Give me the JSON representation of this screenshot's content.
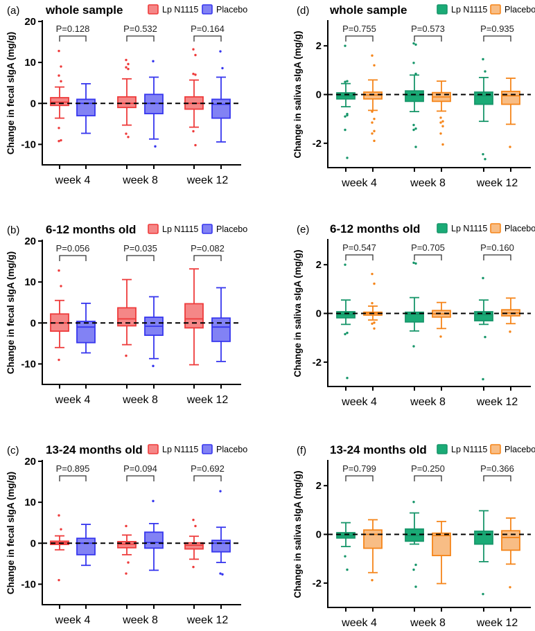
{
  "chart_data": [
    {
      "type": "box",
      "panel_label": "(a)",
      "title": "whole sample",
      "ylabel": "Change in fecal sIgA (mg/g)",
      "ylim": [
        -15,
        20
      ],
      "yticks": [
        -10,
        0,
        10,
        20
      ],
      "categories": [
        "week 4",
        "week 8",
        "week 12"
      ],
      "p_values": [
        "P=0.128",
        "P=0.532",
        "P=0.164"
      ],
      "series": [
        {
          "name": "Lp N1115",
          "color": "#ee3b3b",
          "fill": "#f58787",
          "boxes": [
            {
              "min": -3.6,
              "q1": -0.5,
              "median": 0.3,
              "q3": 1.4,
              "max": 4,
              "outliers": [
                12.8,
                9,
                6.8,
                5.4,
                -6,
                -9,
                -9.2
              ]
            },
            {
              "min": -5.3,
              "q1": -1,
              "median": 0,
              "q3": 1.6,
              "max": 6,
              "outliers": [
                10.6,
                9.6,
                8.8,
                8.4,
                -7.4,
                -8.2
              ]
            },
            {
              "min": -5.8,
              "q1": -1.4,
              "median": 0,
              "q3": 1.6,
              "max": 5.7,
              "outliers": [
                13.2,
                11.8,
                7.2,
                7,
                -6.8,
                -10.2
              ]
            }
          ]
        },
        {
          "name": "Placebo",
          "color": "#3636ee",
          "fill": "#8282f4",
          "boxes": [
            {
              "min": -7.3,
              "q1": -3,
              "median": 0,
              "q3": 1,
              "max": 4.8,
              "outliers": []
            },
            {
              "min": -8.7,
              "q1": -2.5,
              "median": 0,
              "q3": 2.2,
              "max": 6.4,
              "outliers": [
                10.3,
                -10.5
              ]
            },
            {
              "min": -9.4,
              "q1": -3.6,
              "median": -0.2,
              "q3": 1,
              "max": 6.4,
              "outliers": [
                12.7,
                8.6
              ]
            }
          ]
        }
      ]
    },
    {
      "type": "box",
      "panel_label": "(b)",
      "title": "6-12 months old",
      "ylabel": "Change in fecal sIgA (mg/g)",
      "ylim": [
        -15,
        20
      ],
      "yticks": [
        -10,
        0,
        10,
        20
      ],
      "categories": [
        "week 4",
        "week 8",
        "week 12"
      ],
      "p_values": [
        "P=0.056",
        "P=0.035",
        "P=0.082"
      ],
      "series": [
        {
          "name": "Lp N1115",
          "color": "#ee3b3b",
          "fill": "#f58787",
          "boxes": [
            {
              "min": -6,
              "q1": -2,
              "median": 0,
              "q3": 2.2,
              "max": 5.5,
              "outliers": [
                12.8,
                9,
                -9
              ]
            },
            {
              "min": -5.3,
              "q1": -0.7,
              "median": 1,
              "q3": 3.7,
              "max": 10.6,
              "outliers": [
                -8
              ]
            },
            {
              "min": -10.2,
              "q1": -1.2,
              "median": 1,
              "q3": 4.7,
              "max": 13.2,
              "outliers": []
            }
          ]
        },
        {
          "name": "Placebo",
          "color": "#3636ee",
          "fill": "#8282f4",
          "boxes": [
            {
              "min": -7.3,
              "q1": -4.8,
              "median": -1,
              "q3": 0.4,
              "max": 4.8,
              "outliers": []
            },
            {
              "min": -8.7,
              "q1": -3,
              "median": -0.8,
              "q3": 1.4,
              "max": 6.4,
              "outliers": [
                -10.5
              ]
            },
            {
              "min": -9.4,
              "q1": -4.5,
              "median": -1,
              "q3": 1.2,
              "max": 8.6,
              "outliers": []
            }
          ]
        }
      ]
    },
    {
      "type": "box",
      "panel_label": "(c)",
      "title": "13-24 months old",
      "ylabel": "Change in fecal sIgA (mg/g)",
      "ylim": [
        -15,
        20
      ],
      "yticks": [
        -10,
        0,
        10,
        20
      ],
      "categories": [
        "week 4",
        "week 8",
        "week 12"
      ],
      "p_values": [
        "P=0.895",
        "P=0.094",
        "P=0.692"
      ],
      "series": [
        {
          "name": "Lp N1115",
          "color": "#ee3b3b",
          "fill": "#f58787",
          "boxes": [
            {
              "min": -1.6,
              "q1": -0.3,
              "median": 0.1,
              "q3": 0.5,
              "max": 1.8,
              "outliers": [
                6.8,
                3.4,
                -9
              ]
            },
            {
              "min": -2.8,
              "q1": -1.1,
              "median": -0.2,
              "q3": 0.4,
              "max": 2,
              "outliers": [
                4.2,
                -4.7,
                -7.4
              ]
            },
            {
              "min": -3.9,
              "q1": -1.4,
              "median": -0.5,
              "q3": 0.1,
              "max": 1.7,
              "outliers": [
                5.7,
                4.2,
                -5.8
              ]
            }
          ]
        },
        {
          "name": "Placebo",
          "color": "#3636ee",
          "fill": "#8282f4",
          "boxes": [
            {
              "min": -5.4,
              "q1": -2.8,
              "median": 0,
              "q3": 1.2,
              "max": 4.6,
              "outliers": []
            },
            {
              "min": -6.6,
              "q1": -1.2,
              "median": 0.2,
              "q3": 2.7,
              "max": 4.8,
              "outliers": [
                10.3
              ]
            },
            {
              "min": -4.7,
              "q1": -2.1,
              "median": 0,
              "q3": 0.7,
              "max": 3.9,
              "outliers": [
                12.7,
                -7.6,
                -7.4
              ]
            }
          ]
        }
      ]
    },
    {
      "type": "box",
      "panel_label": "(d)",
      "title": "whole sample",
      "ylabel": "Change in saliva sIgA (mg/g)",
      "ylim": [
        -3,
        3
      ],
      "yticks": [
        -2,
        0,
        2
      ],
      "categories": [
        "week 4",
        "week 8",
        "week 12"
      ],
      "p_values": [
        "P=0.755",
        "P=0.573",
        "P=0.935"
      ],
      "series": [
        {
          "name": "Lp N1115",
          "color": "#17966a",
          "fill": "#1aab76",
          "boxes": [
            {
              "min": -0.5,
              "q1": -0.18,
              "median": -0.05,
              "q3": 0.07,
              "max": 0.45,
              "outliers": [
                2,
                0.55,
                0.52,
                -0.8,
                -0.9,
                -0.85,
                -1.45,
                -2.6
              ]
            },
            {
              "min": -0.7,
              "q1": -0.28,
              "median": -0.03,
              "q3": 0.15,
              "max": 0.8,
              "outliers": [
                2.1,
                2.05,
                1.3,
                0.85,
                -1.25,
                -1.4,
                -1.45,
                -2.15
              ]
            },
            {
              "min": -1.1,
              "q1": -0.4,
              "median": -0.05,
              "q3": 0.1,
              "max": 0.7,
              "outliers": [
                1.45,
                0.95,
                -2.45,
                -2.65
              ]
            }
          ]
        },
        {
          "name": "Placebo",
          "color": "#f5851a",
          "fill": "#f8bd85",
          "boxes": [
            {
              "min": -0.65,
              "q1": -0.18,
              "median": -0.02,
              "q3": 0.1,
              "max": 0.6,
              "outliers": [
                1.6,
                1.2,
                -0.7,
                -1,
                -1.15,
                -1.5,
                -1.6,
                -1.9
              ]
            },
            {
              "min": -0.68,
              "q1": -0.28,
              "median": -0.1,
              "q3": 0.08,
              "max": 0.55,
              "outliers": [
                -0.95,
                -1.1,
                -1.15,
                -1.3,
                -1.6,
                -2.05
              ]
            },
            {
              "min": -1.22,
              "q1": -0.4,
              "median": -0.05,
              "q3": 0.13,
              "max": 0.67,
              "outliers": [
                -2.15
              ]
            }
          ]
        }
      ]
    },
    {
      "type": "box",
      "panel_label": "(e)",
      "title": "6-12 months old",
      "ylabel": "Change in saliva sIgA (mg/g)",
      "ylim": [
        -3,
        3
      ],
      "yticks": [
        -2,
        0,
        2
      ],
      "categories": [
        "week 4",
        "week 8",
        "week 12"
      ],
      "p_values": [
        "P=0.547",
        "P=0.705",
        "P=0.160"
      ],
      "series": [
        {
          "name": "Lp N1115",
          "color": "#17966a",
          "fill": "#1aab76",
          "boxes": [
            {
              "min": -0.45,
              "q1": -0.18,
              "median": -0.05,
              "q3": 0.07,
              "max": 0.55,
              "outliers": [
                2,
                -0.8,
                -0.85,
                -2.65
              ]
            },
            {
              "min": -0.72,
              "q1": -0.35,
              "median": -0.03,
              "q3": 0.05,
              "max": 0.65,
              "outliers": [
                2.08,
                2.05,
                -1.35
              ]
            },
            {
              "min": -0.45,
              "q1": -0.3,
              "median": -0.05,
              "q3": 0.07,
              "max": 0.55,
              "outliers": [
                1.45,
                -0.97,
                -2.7
              ]
            }
          ]
        },
        {
          "name": "Placebo",
          "color": "#f5851a",
          "fill": "#f8bd85",
          "boxes": [
            {
              "min": -0.27,
              "q1": -0.07,
              "median": 0,
              "q3": 0.05,
              "max": 0.3,
              "outliers": [
                1.62,
                1.22,
                0.42,
                -0.38,
                -0.42,
                -0.62
              ]
            },
            {
              "min": -0.62,
              "q1": -0.15,
              "median": -0.02,
              "q3": 0.12,
              "max": 0.45,
              "outliers": [
                -0.95
              ]
            },
            {
              "min": -0.42,
              "q1": -0.1,
              "median": 0.02,
              "q3": 0.15,
              "max": 0.63,
              "outliers": [
                -0.75
              ]
            }
          ]
        }
      ]
    },
    {
      "type": "box",
      "panel_label": "(f)",
      "title": "13-24 months old",
      "ylabel": "Change in saliva sIgA (mg/g)",
      "ylim": [
        -3,
        3
      ],
      "yticks": [
        -2,
        0,
        2
      ],
      "categories": [
        "week 4",
        "week 8",
        "week 12"
      ],
      "p_values": [
        "P=0.799",
        "P=0.250",
        "P=0.366"
      ],
      "series": [
        {
          "name": "Lp N1115",
          "color": "#17966a",
          "fill": "#1aab76",
          "boxes": [
            {
              "min": -0.5,
              "q1": -0.15,
              "median": -0.05,
              "q3": 0.07,
              "max": 0.48,
              "outliers": [
                -0.9,
                -1.45
              ]
            },
            {
              "min": -0.4,
              "q1": -0.28,
              "median": -0.05,
              "q3": 0.22,
              "max": 0.88,
              "outliers": [
                1.33,
                -1.25,
                -1.45,
                -2.15
              ]
            },
            {
              "min": -1.12,
              "q1": -0.4,
              "median": 0,
              "q3": 0.13,
              "max": 0.97,
              "outliers": [
                -2.45
              ]
            }
          ]
        },
        {
          "name": "Placebo",
          "color": "#f5851a",
          "fill": "#f8bd85",
          "boxes": [
            {
              "min": -1.57,
              "q1": -0.57,
              "median": 0,
              "q3": 0.18,
              "max": 0.6,
              "outliers": [
                -1.88
              ]
            },
            {
              "min": -2.02,
              "q1": -0.87,
              "median": -0.05,
              "q3": 0.05,
              "max": 0.53,
              "outliers": []
            },
            {
              "min": -1.22,
              "q1": -0.65,
              "median": -0.13,
              "q3": 0.15,
              "max": 0.67,
              "outliers": [
                -2.17
              ]
            }
          ]
        }
      ]
    }
  ]
}
